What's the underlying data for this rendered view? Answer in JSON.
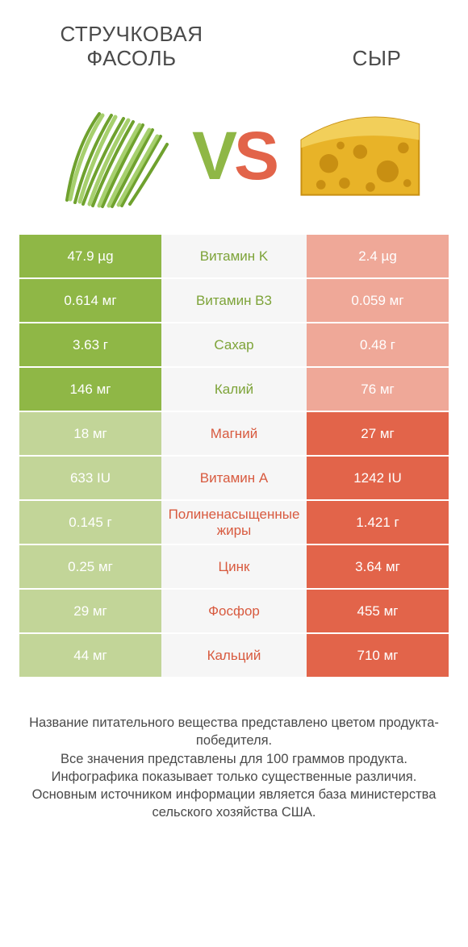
{
  "colors": {
    "green": "#8fb746",
    "green_pale": "#c2d598",
    "orange": "#e2644a",
    "orange_pale": "#efa898",
    "mid_bg": "#f6f6f6",
    "text": "#4a4a4a",
    "mid_green_text": "#7da338",
    "mid_orange_text": "#d85a3f"
  },
  "titles": {
    "left": "СТРУЧКОВАЯ ФАСОЛЬ",
    "right": "СЫР"
  },
  "vs": {
    "v": "V",
    "s": "S"
  },
  "rows": [
    {
      "left": "47.9 µg",
      "mid": "Витамин K",
      "right": "2.4 µg",
      "winner": "left"
    },
    {
      "left": "0.614 мг",
      "mid": "Витамин B3",
      "right": "0.059 мг",
      "winner": "left"
    },
    {
      "left": "3.63 г",
      "mid": "Сахар",
      "right": "0.48 г",
      "winner": "left"
    },
    {
      "left": "146 мг",
      "mid": "Калий",
      "right": "76 мг",
      "winner": "left"
    },
    {
      "left": "18 мг",
      "mid": "Магний",
      "right": "27 мг",
      "winner": "right"
    },
    {
      "left": "633 IU",
      "mid": "Витамин A",
      "right": "1242 IU",
      "winner": "right"
    },
    {
      "left": "0.145 г",
      "mid": "Полиненасыщенные жиры",
      "right": "1.421 г",
      "winner": "right"
    },
    {
      "left": "0.25 мг",
      "mid": "Цинк",
      "right": "3.64 мг",
      "winner": "right"
    },
    {
      "left": "29 мг",
      "mid": "Фосфор",
      "right": "455 мг",
      "winner": "right"
    },
    {
      "left": "44 мг",
      "mid": "Кальций",
      "right": "710 мг",
      "winner": "right"
    }
  ],
  "footer": [
    "Название питательного вещества представлено цветом продукта-победителя.",
    "Все значения представлены для 100 граммов продукта.",
    "Инфографика показывает только существенные различия.",
    "Основным источником информации является база министерства сельского хозяйства США."
  ]
}
